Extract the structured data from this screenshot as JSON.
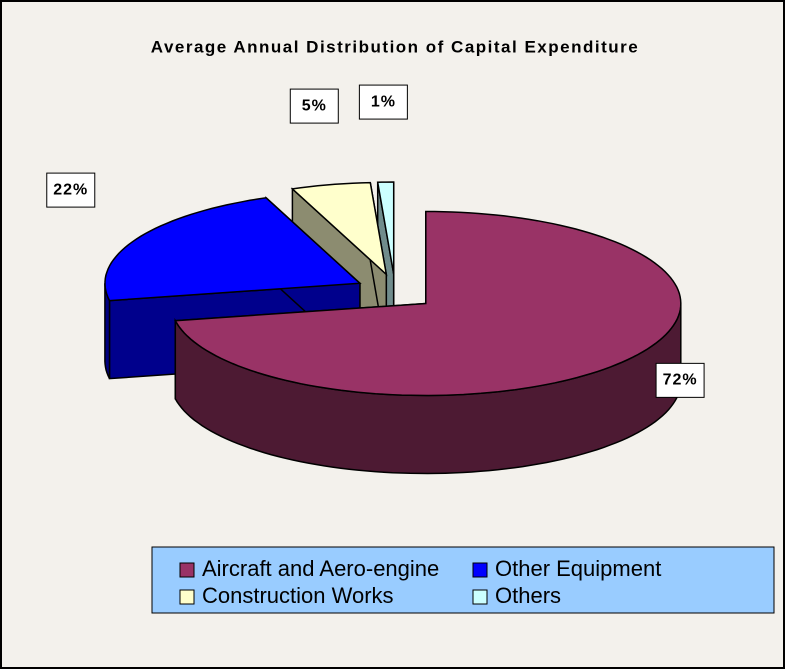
{
  "chart_data": {
    "type": "pie3d",
    "title": "Average Annual Distribution of Capital Expenditure",
    "categories": [
      "Aircraft and Aero-engine",
      "Other Equipment",
      "Construction Works",
      "Others"
    ],
    "values": [
      72,
      22,
      5,
      1
    ],
    "value_labels": [
      "72%",
      "22%",
      "5%",
      "1%"
    ],
    "colors": [
      "#993366",
      "#0000ff",
      "#ffffcc",
      "#ccffff"
    ],
    "legend": "bottom"
  }
}
